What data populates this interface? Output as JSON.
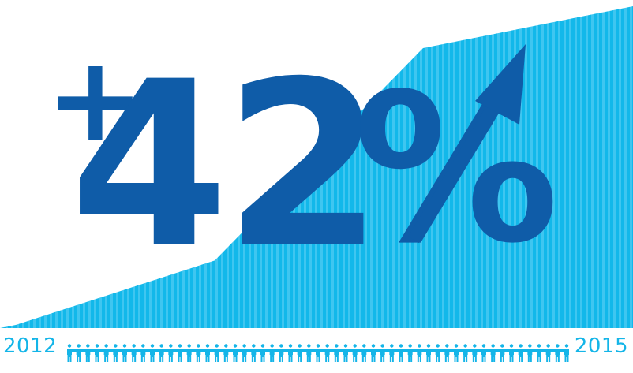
{
  "chart_data": {
    "type": "area",
    "x": [
      "2012",
      "2015"
    ],
    "values": [
      0,
      42
    ],
    "unit": "%",
    "headline": {
      "sign": "+",
      "number": "42",
      "percent": "%"
    },
    "x_start_label": "2012",
    "x_end_label": "2015",
    "grid": false
  },
  "colors": {
    "area_light": "#12b8ea",
    "area_stripe": "#3fc6f0",
    "headline": "#0f5ca8",
    "arrow": "#0f5ca8",
    "people": "#14b5e8",
    "years": "#14b5e8",
    "background": "#ffffff"
  },
  "icons": {
    "arrow": "up-right-arrow-icon",
    "people": "person-icon"
  }
}
